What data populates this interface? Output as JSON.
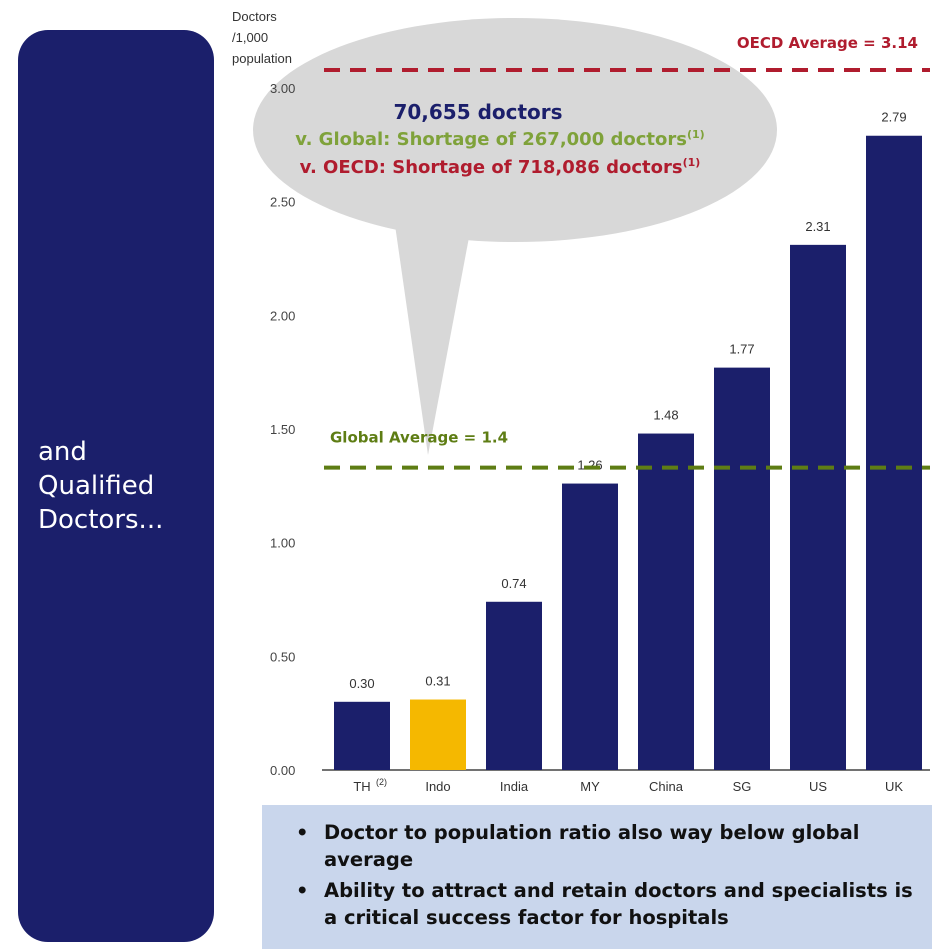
{
  "side_panel": {
    "lines": [
      "and",
      "Qualified",
      "Doctors..."
    ]
  },
  "bubble": {
    "line1": "70,655 doctors",
    "line2": "v. Global: Shortage of 267,000 doctors",
    "line2_sup": "(1)",
    "line3": "v. OECD: Shortage of 718,086 doctors",
    "line3_sup": "(1)"
  },
  "notes": {
    "items": [
      "Doctor to population ratio also way below global average",
      "Ability to attract and retain doctors and specialists is a critical success factor for hospitals"
    ]
  },
  "chart_data": {
    "type": "bar",
    "ylabel_lines": [
      "Doctors",
      "/1,000",
      "population"
    ],
    "ylim": [
      0,
      3.0
    ],
    "yticks": [
      "0.00",
      "0.50",
      "1.00",
      "1.50",
      "2.00",
      "2.50",
      "3.00"
    ],
    "categories": [
      "TH",
      "Indo",
      "India",
      "MY",
      "China",
      "SG",
      "US",
      "UK"
    ],
    "category_sups": [
      "(2)",
      "",
      "",
      "",
      "",
      "",
      "",
      ""
    ],
    "values": [
      0.3,
      0.31,
      0.74,
      1.26,
      1.48,
      1.77,
      2.31,
      2.79
    ],
    "value_labels": [
      "0.30",
      "0.31",
      "0.74",
      "1.26",
      "1.48",
      "1.77",
      "2.31",
      "2.79"
    ],
    "bar_colors": [
      "#1b1f6b",
      "#f5b800",
      "#1b1f6b",
      "#1b1f6b",
      "#1b1f6b",
      "#1b1f6b",
      "#1b1f6b",
      "#1b1f6b"
    ],
    "reference_lines": [
      {
        "label": "OECD Average = 3.14",
        "value": 3.14,
        "color": "#b01c2e"
      },
      {
        "label": "Global Average = 1.4",
        "value": 1.4,
        "color": "#5e7d14"
      }
    ],
    "grid": false,
    "legend": "none"
  }
}
